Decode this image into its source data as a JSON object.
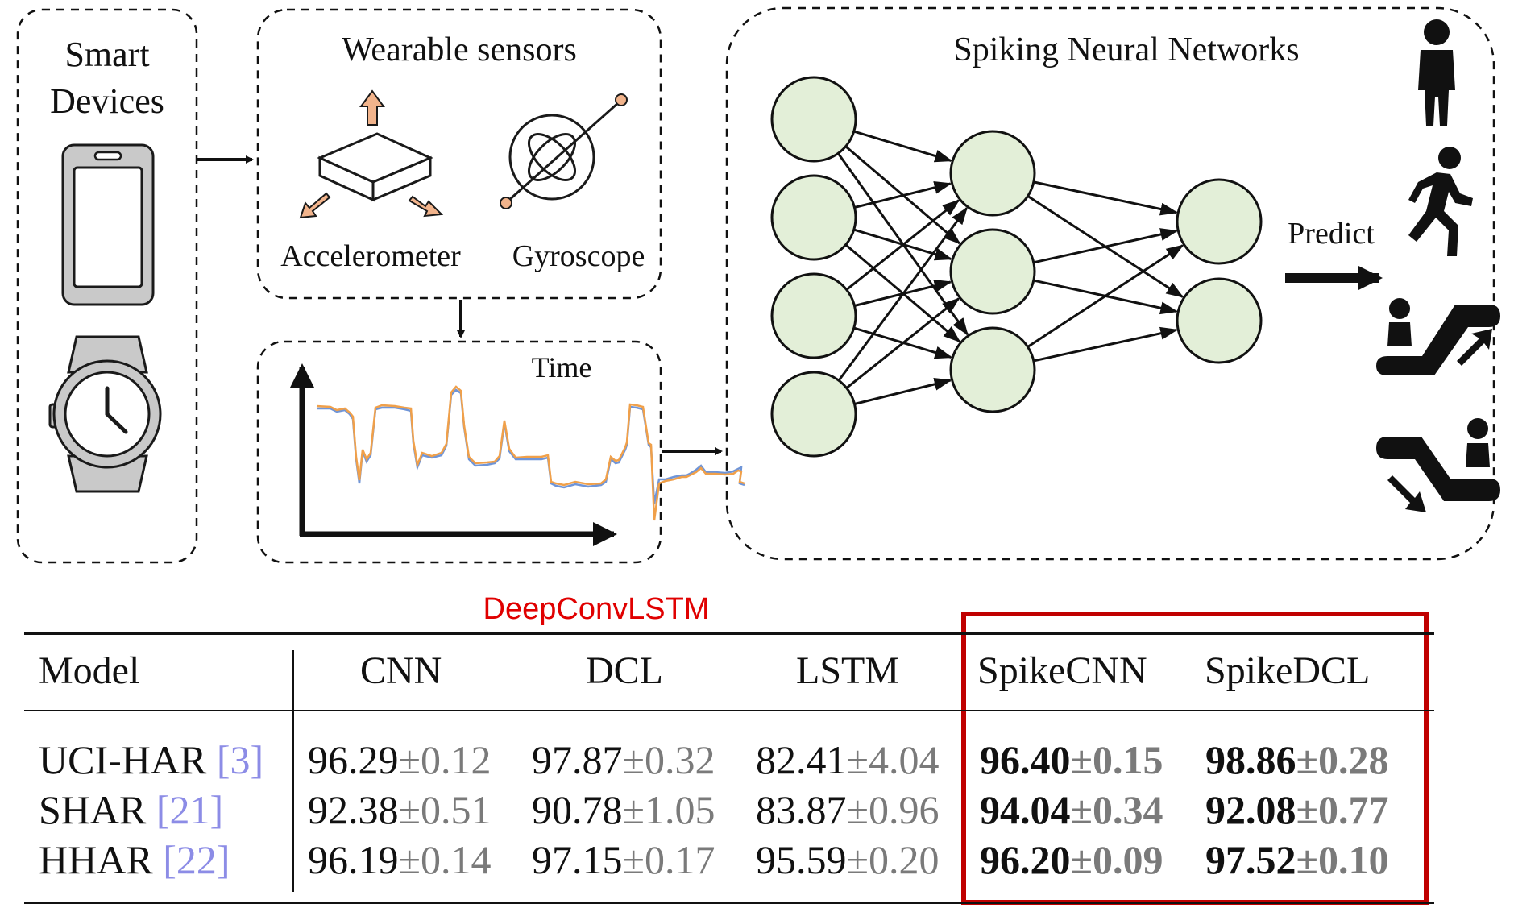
{
  "panels": {
    "smart_devices": {
      "title_line1": "Smart",
      "title_line2": "Devices"
    },
    "wearable_sensors": {
      "title": "Wearable sensors",
      "accelerometer": "Accelerometer",
      "gyroscope": "Gyroscope"
    },
    "time_series": {
      "label": "Time"
    },
    "snn": {
      "title": "Spiking Neural Networks",
      "predict": "Predict"
    }
  },
  "activity_icons": [
    "standing-person-icon",
    "running-person-icon",
    "escalator-up-icon",
    "escalator-down-icon"
  ],
  "annotation": {
    "label": "DeepConvLSTM",
    "color": "#e00000"
  },
  "colors": {
    "node_fill": "#e3efd8",
    "arrow_orange": "#f2b48c",
    "series_orange": "#f0a04a",
    "series_blue": "#6f95d8",
    "highlight_box": "#c00000",
    "ref_blue": "#8c8ce6",
    "std_gray": "#7a7a7a"
  },
  "table": {
    "columns": [
      "Model",
      "CNN",
      "DCL",
      "LSTM",
      "SpikeCNN",
      "SpikeDCL"
    ],
    "rows": [
      {
        "name": "UCI-HAR",
        "ref": "[3]",
        "cells": [
          {
            "mean": "96.29",
            "std": "±0.12"
          },
          {
            "mean": "97.87",
            "std": "±0.32"
          },
          {
            "mean": "82.41",
            "std": "±4.04"
          },
          {
            "mean": "96.40",
            "std": "±0.15"
          },
          {
            "mean": "98.86",
            "std": "±0.28"
          }
        ]
      },
      {
        "name": "SHAR",
        "ref": "[21]",
        "cells": [
          {
            "mean": "92.38",
            "std": "±0.51"
          },
          {
            "mean": "90.78",
            "std": "±1.05"
          },
          {
            "mean": "83.87",
            "std": "±0.96"
          },
          {
            "mean": "94.04",
            "std": "±0.34"
          },
          {
            "mean": "92.08",
            "std": "±0.77"
          }
        ]
      },
      {
        "name": "HHAR",
        "ref": "[22]",
        "cells": [
          {
            "mean": "96.19",
            "std": "±0.14"
          },
          {
            "mean": "97.15",
            "std": "±0.17"
          },
          {
            "mean": "95.59",
            "std": "±0.20"
          },
          {
            "mean": "96.20",
            "std": "±0.09"
          },
          {
            "mean": "97.52",
            "std": "±0.10"
          }
        ]
      }
    ]
  }
}
